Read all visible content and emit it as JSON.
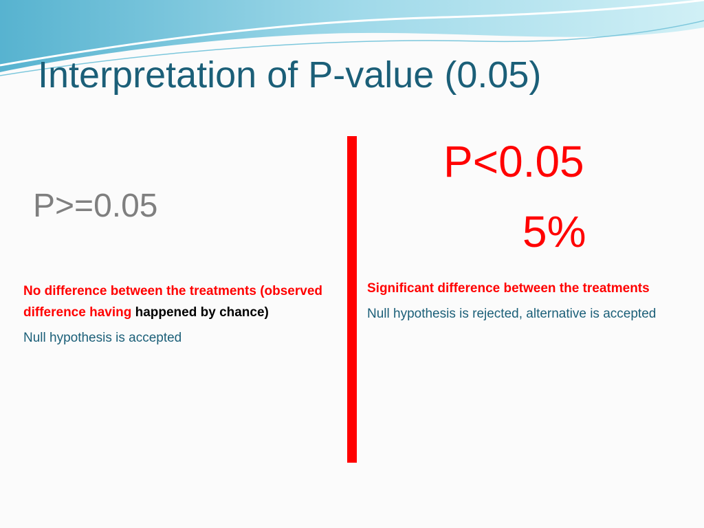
{
  "title": "Interpretation of P-value (0.05)",
  "left": {
    "heading": "P>=0.05",
    "statement_red": "No difference between the treatments (observed difference having",
    "statement_black": "happened by chance)",
    "conclusion": "Null hypothesis is accepted"
  },
  "right": {
    "heading": "P<0.05",
    "percent": "5%",
    "statement": "Significant difference between the treatments",
    "conclusion": "Null hypothesis is rejected, alternative is accepted"
  }
}
